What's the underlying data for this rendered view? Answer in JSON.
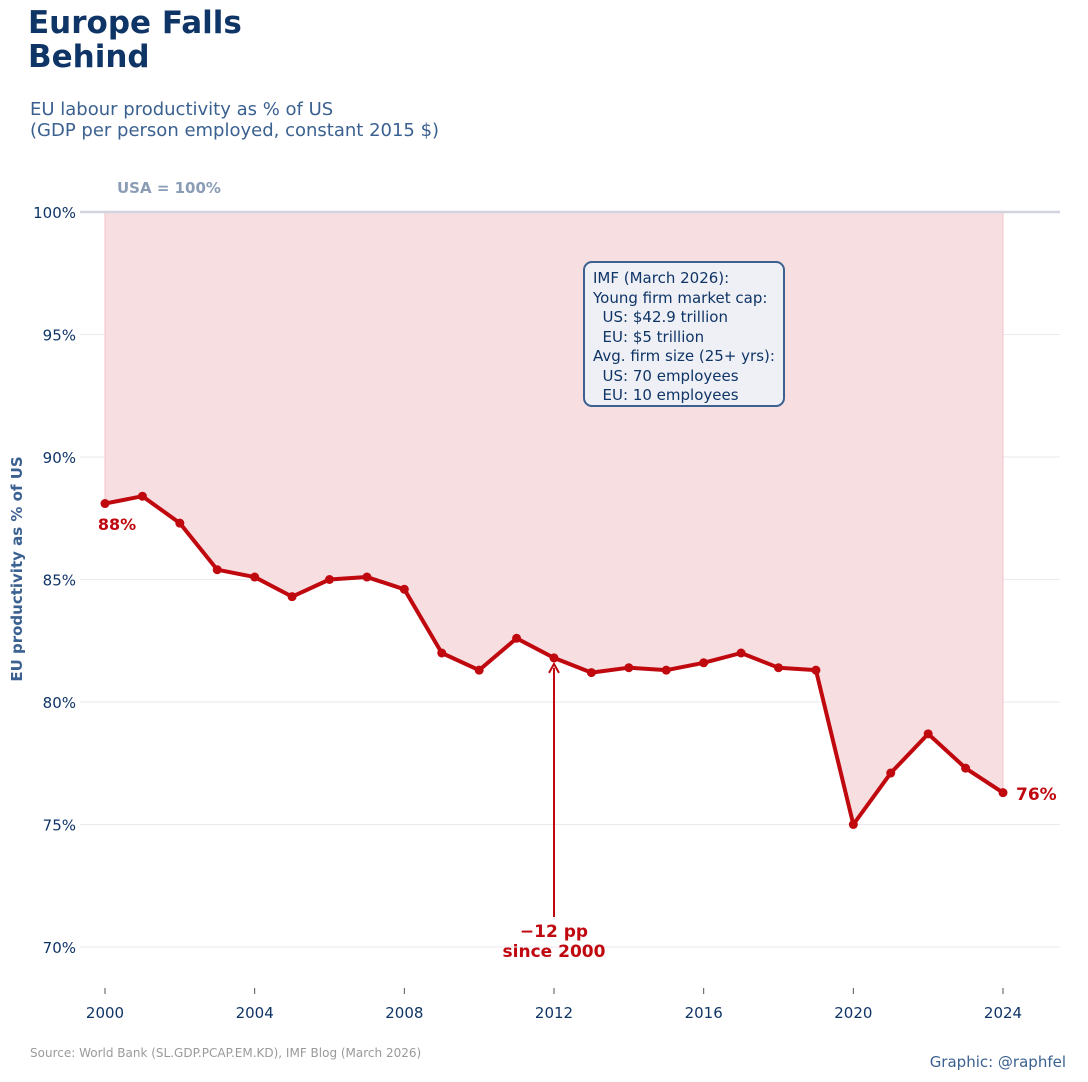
{
  "header": {
    "title_line1": "Europe Falls",
    "title_line2": "Behind",
    "subtitle_line1": "EU labour productivity as % of US",
    "subtitle_line2": "(GDP per person employed, constant 2015 $)"
  },
  "chart_data": {
    "type": "line",
    "title": "Europe Falls Behind",
    "subtitle": "EU labour productivity as % of US (GDP per person employed, constant 2015 $)",
    "xlabel": "",
    "ylabel": "EU productivity as % of US",
    "xlim": [
      1999.8,
      2025.3
    ],
    "ylim": [
      68.2,
      100.3
    ],
    "grid": true,
    "x": [
      2000,
      2001,
      2002,
      2003,
      2004,
      2005,
      2006,
      2007,
      2008,
      2009,
      2010,
      2011,
      2012,
      2013,
      2014,
      2015,
      2016,
      2017,
      2018,
      2019,
      2020,
      2021,
      2022,
      2023,
      2024
    ],
    "series": [
      {
        "name": "EU productivity as % of US",
        "color": "#c0080f",
        "values": [
          88.1,
          88.4,
          87.3,
          85.4,
          85.1,
          84.3,
          85.0,
          85.1,
          84.6,
          82.0,
          81.3,
          82.6,
          81.8,
          81.2,
          81.4,
          81.3,
          81.6,
          82.0,
          81.4,
          81.3,
          75.0,
          77.1,
          78.7,
          77.3,
          76.3
        ]
      }
    ],
    "xticks": [
      2000,
      2004,
      2008,
      2012,
      2016,
      2020,
      2024
    ],
    "xtick_labels": [
      "2000",
      "2004",
      "2008",
      "2012",
      "2016",
      "2020",
      "2024"
    ],
    "yticks": [
      70,
      75,
      80,
      85,
      90,
      95,
      100
    ],
    "ytick_labels": [
      "70%",
      "75%",
      "80%",
      "85%",
      "90%",
      "95%",
      "100%"
    ],
    "reference_line": {
      "value": 100,
      "label": "USA = 100%"
    },
    "annotations": {
      "start_label": "88%",
      "end_label": "76%",
      "change_line1": "−12 pp",
      "change_line2": "since 2000",
      "arrow_x": 2012,
      "arrow_target_y": 81.8
    },
    "colors": {
      "line": "#c0080f",
      "fill": "#f7dee0",
      "reference": "#d2d5de",
      "ref_label": "#8b9db6",
      "ticks": "#0f3466",
      "grid": "#e9e9ee"
    }
  },
  "imf_box": {
    "lines": [
      "IMF (March 2026):",
      "Young firm market cap:",
      "  US: $42.9 trillion",
      "  EU: $5 trillion",
      "Avg. firm size (25+ yrs):",
      "  US: 70 employees",
      "  EU: 10 employees"
    ]
  },
  "footer": {
    "source": "Source: World Bank (SL.GDP.PCAP.EM.KD), IMF Blog (March 2026)",
    "credit": "Graphic: @raphfel"
  }
}
